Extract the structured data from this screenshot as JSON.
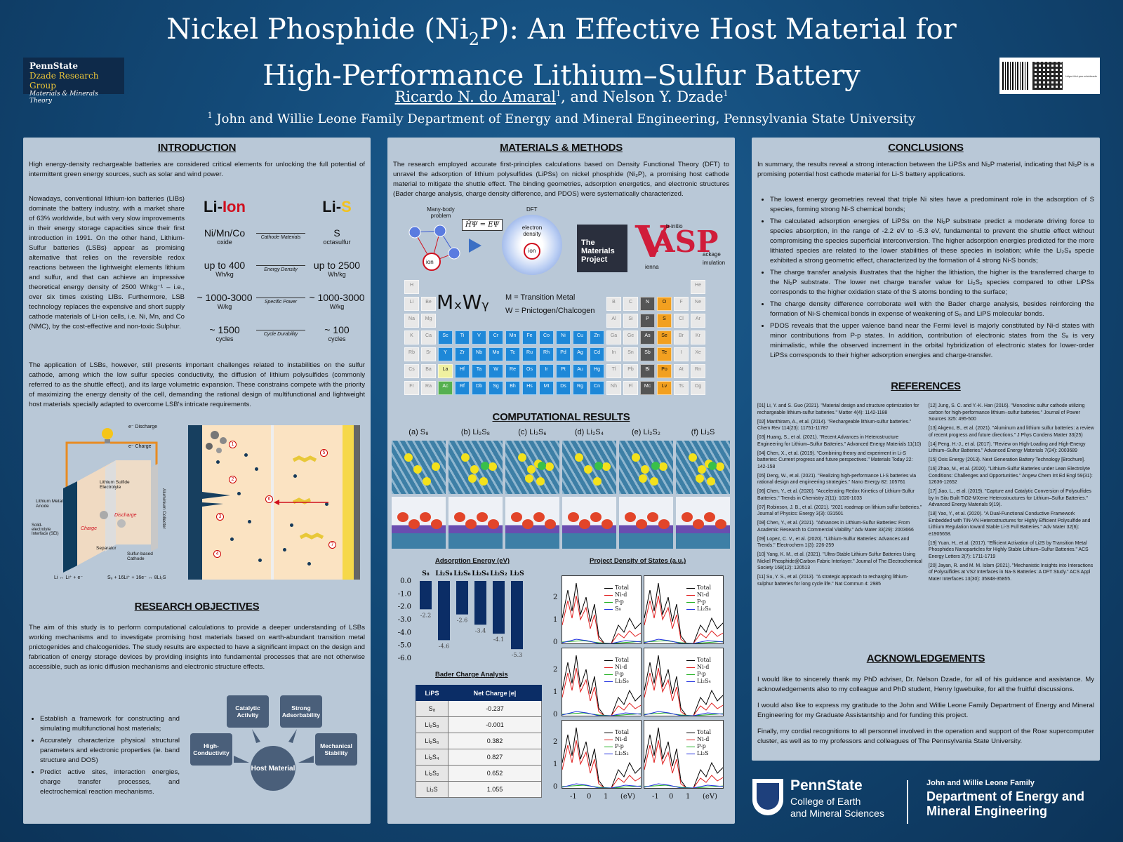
{
  "header": {
    "title_line1_a": "Nickel Phosphide (Ni",
    "title_sub": "2",
    "title_line1_b": "P): An Effective Host Material for",
    "title_line2": "High-Performance Lithium–Sulfur Battery",
    "author1": "Ricardo N. do Amaral",
    "author_join": ", and Nelson Y. Dzade",
    "affiliation": "John and Willie Leone Family Department of Energy and Mineral Engineering, Pennsylvania State University",
    "logo_l1": "PennState",
    "logo_l2": "Dzade Research Group",
    "logo_l3": "Materials & Minerals Theory",
    "qr_label": "https://doi.psu.edu/dzade"
  },
  "intro": {
    "heading": "INTRODUCTION",
    "p1": "High energy-density rechargeable batteries are considered critical elements for unlocking the full potential of intermittent green energy sources, such as solar and wind power.",
    "p2": "Nowadays, conventional lithium-ion batteries (LIBs) dominate the battery industry, with a market share of 63% worldwide, but with very slow improvements in their energy storage capacities since their first introduction in 1991. On the other hand, Lithium-Sulfur batteries (LSBs) appear as promising alternative that relies on the reversible redox reactions between the lightweight elements lithium and sulfur, and that can achieve an impressive theoretical energy density of 2500 Whkg⁻¹ – i.e., over six times existing LIBs. Furthermore, LSB technology replaces the expensive and short supply cathode materials of Li-ion cells, i.e. Ni, Mn, and Co (NMC), by the cost-effective and non-toxic Sulphur.",
    "p3": "The application of LSBs, however, still presents important challenges related to instabilities on the sulfur cathode, among which the low sulfur species conductivity, the diffusion of lithium polysulfides (commonly referred to as the shuttle effect), and its large volumetric expansion. These constrains compete with the priority of maximizing the energy density of the cell, demanding the rational design of multifunctional and lightweight host materials specially adapted to overcome LSB's intricate requirements.",
    "lib_head_a": "Li-",
    "lib_head_b": "Ion",
    "lsb_head_a": "Li-",
    "lsb_head_b": "S",
    "rows": [
      {
        "left": "Ni/Mn/Co",
        "left_small": "oxide",
        "mid": "Cathode Materials",
        "right": "S",
        "right_small": "octasulfur"
      },
      {
        "left": "up to 400",
        "left_small": "Wh/kg",
        "mid": "Energy Density",
        "right": "up to 2500",
        "right_small": "Wh/kg"
      },
      {
        "left": "~ 1000-3000",
        "left_small": "W/kg",
        "mid": "Specific Power",
        "right": "~ 1000-3000",
        "right_small": "W/kg"
      },
      {
        "left": "~ 1500",
        "left_small": "cycles",
        "mid": "Cycle Durability",
        "right": "~ 100",
        "right_small": "cycles"
      }
    ],
    "fig": {
      "discharge": "e⁻ Discharge",
      "charge": "e⁻ Charge",
      "anode": "Lithium Metal Anode",
      "electrolyte": "Lithium Sulfide Electrolyte",
      "collector": "Aluminium Collector",
      "sei": "Solid-electrolyte Interface (SEI)",
      "discharge_red": "Discharge",
      "charge_red": "Charge",
      "separator": "Separator",
      "cathode": "Sulfur-based Cathode",
      "eq_left": "Li ↔ Li⁺ + e⁻",
      "eq_right": "S₈ + 16Li⁺ + 16e⁻ ↔ 8Li₂S"
    }
  },
  "objectives": {
    "heading": "RESEARCH OBJECTIVES",
    "p1": "The aim of this study is to perform computational calculations to provide a deeper understanding of LSBs working mechanisms and to investigate promising host materials based on earth-abundant transition metal pnictogenides and chalcogenides. The study results are expected to have a significant impact on the design and fabrication of energy storage devices by providing insights into fundamental processes that are not otherwise accessible, such as ionic diffusion mechanisms and electronic structure effects.",
    "bullets": [
      "Establish a framework for constructing and simulating multifunctional host materials;",
      "Accurately characterize physical structural parameters and electronic properties (ie. band structure and DOS)",
      "Predict active sites, interaction energies, charge transfer processes, and electrochemical reaction mechanisms."
    ],
    "nodes": {
      "catalytic": "Catalytic Activity",
      "adsorb": "Strong Adsorbability",
      "conduct": "High-Conductivity",
      "mech": "Mechanical Stability",
      "host": "Host Material"
    }
  },
  "methods": {
    "heading": "MATERIALS & METHODS",
    "p1": "The research employed accurate first-principles calculations based on Density Functional Theory (DFT) to unravel the adsorption of lithium polysulfides (LiPSs) on nickel phosphide (Ni₂P), a promising host cathode material to mitigate the shuttle effect. The binding geometries, adsorption energetics, and electronic structures (Bader charge analysis, charge density difference, and PDOS) were systematically characterized.",
    "manybody": "Many-body problem",
    "dft": "DFT",
    "schrod": "ĤΨ = EΨ",
    "edensity": "electron density",
    "ion": "ion",
    "e": "e⁻",
    "mp": "The Materials Project",
    "vasp_v": "V",
    "vasp_asp": "ASP",
    "vasp_side1": "b-initio",
    "vasp_side2": "ackage",
    "vasp_side3": "imulation",
    "vasp_side4": "ienna",
    "mxwy": "MₓWᵧ",
    "tm": "M = Transition Metal",
    "pn": "W = Pnictogen/Chalcogen"
  },
  "results": {
    "heading": "COMPUTATIONAL RESULTS",
    "labels": [
      "(a) S₈",
      "(b) Li₂S₈",
      "(c) Li₂S₆",
      "(d) Li₂S₄",
      "(e) Li₂S₂",
      "(f) Li₂S"
    ],
    "ads_title": "Adsorption Energy (eV)",
    "bader_title": "Bader Charge Analysis",
    "pdos_title": "Project Density of States (a.u.)",
    "bader_head": [
      "LiPS",
      "Net Charge |e|"
    ],
    "bader_rows": [
      [
        "S₈",
        "-0.237"
      ],
      [
        "Li₂S₈",
        "-0.001"
      ],
      [
        "Li₂S₆",
        "0.382"
      ],
      [
        "Li₂S₄",
        "0.827"
      ],
      [
        "Li₂S₂",
        "0.652"
      ],
      [
        "Li₂S",
        "1.055"
      ]
    ],
    "pdos_legend_base": [
      "Total",
      "Ni-d",
      "P-p"
    ],
    "pdos_species": [
      "S₈",
      "Li₂S₈",
      "Li₂S₆",
      "Li₂S₄",
      "Li₂S₂",
      "Li₂S"
    ],
    "pdos_xticks": [
      "-1",
      "0",
      "1",
      "(eV)"
    ],
    "pdos_yticks": [
      "2",
      "1",
      "0"
    ]
  },
  "chart_data": {
    "type": "bar",
    "title": "Adsorption Energy (eV)",
    "categories": [
      "S₈",
      "Li₂S₈",
      "Li₂S₆",
      "Li₂S₄",
      "Li₂S₂",
      "Li₂S"
    ],
    "values": [
      -2.2,
      -4.6,
      -2.6,
      -3.4,
      -4.1,
      -5.3
    ],
    "value_labels": [
      "-2.2",
      "-4.6",
      "-2.6",
      "-3.4",
      "-4.1",
      "-5.3"
    ],
    "ylim": [
      -6.0,
      0.0
    ],
    "yticks": [
      "0.0",
      "-1.0",
      "-2.0",
      "-3.0",
      "-4.0",
      "-5.0",
      "-6.0"
    ],
    "bar_color": "#0b2d66"
  },
  "conclusions": {
    "heading": "CONCLUSIONS",
    "p1": "In summary, the results reveal a strong interaction between the LiPSs and Ni₂P material, indicating that Ni₂P is a promising potential host cathode material for Li-S battery applications.",
    "bullets": [
      "The lowest energy geometries reveal that triple Ni sites have a predominant role in the adsorption of S species, forming strong Ni-S chemical bonds;",
      "The calculated adsorption energies of LiPSs on the Ni₂P substrate predict a moderate driving force to species absorption, in the range of -2.2 eV to -5.3 eV, fundamental to prevent the shuttle effect without compromising the species superficial interconversion. The higher adsorption energies predicted for the more lithiated species are related to the lower stabilities of these species in isolation; while the Li₂S₈ specie exhibited a strong geometric effect, characterized by the formation of 4 strong Ni-S bonds;",
      "The charge transfer analysis illustrates that the higher the lithiation, the higher is the transferred charge to the Ni₂P substrate. The lower net charge transfer value for Li₂S₂ species compared to other LiPSs corresponds to the higher oxidation state of the S atoms bonding to the surface;",
      "The charge density difference corroborate well with the Bader charge analysis, besides reinforcing the formation of Ni-S chemical bonds in expense of weakening of S₈ and LiPS molecular bonds.",
      "PDOS reveals that the upper valence band near the Fermi level is majorly constituted by Ni-d states with minor contributions from P-p states. In addition, contribution of electronic states from the S₈ is very minimalistic, while the observed increment in the orbital hybridization of electronic states for lower-order LiPSs corresponds to their higher adsorption energies and charge-transfer."
    ]
  },
  "references": {
    "heading": "REFERENCES",
    "col1": [
      "[01] Li, Y. and S. Guo (2021). \"Material design and structure optimization for rechargeable lithium-sulfur batteries.\" Matter 4(4): 1142-1188",
      "[02] Manthiram, A., et al. (2014). \"Rechargeable lithium-sulfur batteries.\" Chem Rev 114(23): 11751-11787",
      "[03] Huang, S., et al. (2021). \"Recent Advances in Heterostructure Engineering for Lithium–Sulfur Batteries.\" Advanced Energy Materials 11(10)",
      "[04] Chen, X., et al. (2019). \"Combining theory and experiment in Li-S batteries: Current progress and future perspectives.\" Materials Today 22: 142-158",
      "[05] Deng, W., et al. (2021). \"Realizing high-performance Li-S batteries via rational design and engineering strategies.\" Nano Energy 82: 105761",
      "[06] Chen, Y., et al. (2020). \"Accelerating Redox Kinetics of Lithium-Sulfur Batteries.\" Trends in Chemistry 2(11): 1020-1033",
      "[07] Robinson, J. B., et al. (2021). \"2021 roadmap on lithium sulfur batteries.\" Journal of Physics: Energy 3(3): 031501",
      "[08] Chen, Y., et al. (2021). \"Advances in Lithium-Sulfur Batteries: From Academic Research to Commercial Viability.\" Adv Mater 33(29): 2003666",
      "[09] Lopez, C. V., et al. (2020). \"Lithium-Sulfur Batteries: Advances and Trends.\" Electrochem 1(3): 226-259",
      "[10] Yang, K. M., et al. (2021). \"Ultra-Stable Lithium-Sulfur Batteries Using Nickel Phosphide@Carbon Fabric Interlayer.\" Journal of The Electrochemical Society 168(12): 120513",
      "[11] Su, Y. S., et al. (2013). \"A strategic approach to recharging lithium-sulphur batteries for long cycle life.\" Nat Commun 4: 2985"
    ],
    "col2": [
      "[12] Jung, S. C. and Y.-K. Han (2016). \"Monoclinic sulfur cathode utilizing carbon for high-performance lithium–sulfur batteries.\" Journal of Power Sources 325: 495-500",
      "[13] Akgenc, B., et al. (2021). \"Aluminum and lithium sulfur batteries: a review of recent progress and future directions.\" J Phys Condens Matter 33(25)",
      "[14] Peng, H.-J., et al. (2017). \"Review on High-Loading and High-Energy Lithium–Sulfur Batteries.\" Advanced Energy Materials 7(24): 2003689",
      "[15] Oxis Energy (2013). Next Generation Battery Technology [Brochure].",
      "[16] Zhao, M., et al. (2020). \"Lithium-Sulfur Batteries under Lean Electrolyte Conditions: Challenges and Opportunities.\" Angew Chem Int Ed Engl 59(31): 12636-12652",
      "[17] Jiao, L., et al. (2019). \"Capture and Catalytic Conversion of Polysulfides by In Situ Built TiO2-MXene Heterostructures for Lithium–Sulfur Batteries.\" Advanced Energy Materials 9(19).",
      "[18] Yao, Y., et al. (2020). \"A Dual-Functional Conductive Framework Embedded with TiN-VN Heterostructures for Highly Efficient Polysulfide and Lithium Regulation toward Stable Li-S Full Batteries.\" Adv Mater 32(6): e1905658.",
      "[19] Yuan, H., et al. (2017). \"Efficient Activation of Li2S by Transition Metal Phosphides Nanoparticles for Highly Stable Lithium–Sulfur Batteries.\" ACS Energy Letters 2(7): 1711-1719",
      "[20] Jayan, R. and M. M. Islam (2021). \"Mechanistic Insights into Interactions of Polysulfides at VS2 Interfaces in Na-S Batteries: A DFT Study.\" ACS Appl Mater Interfaces 13(30): 35848-35855."
    ]
  },
  "ack": {
    "heading": "ACKNOWLEDGEMENTS",
    "p1": "I would like to sincerely thank my PhD adviser, Dr. Nelson Dzade, for all of his guidance and assistance. My acknowledgements also to my colleague and PhD student, Henry Igwebuike, for all the fruitful discussions.",
    "p2": "I would also like to express my gratitude to the John and Willie Leone Family Department of Energy and Mineral Engineering for my Graduate Assistantship and for funding this project.",
    "p3": "Finally, my cordial recognitions to all personnel involved in the operation and support of the Roar supercomputer cluster, as well as to my professors and colleagues of The Pennsylvania State University."
  },
  "footer": {
    "ps": "PennState",
    "college1": "College of Earth",
    "college2": "and Mineral Sciences",
    "dept_small": "John and Willie Leone Family",
    "dept1": "Department of Energy and",
    "dept2": "Mineral Engineering"
  }
}
